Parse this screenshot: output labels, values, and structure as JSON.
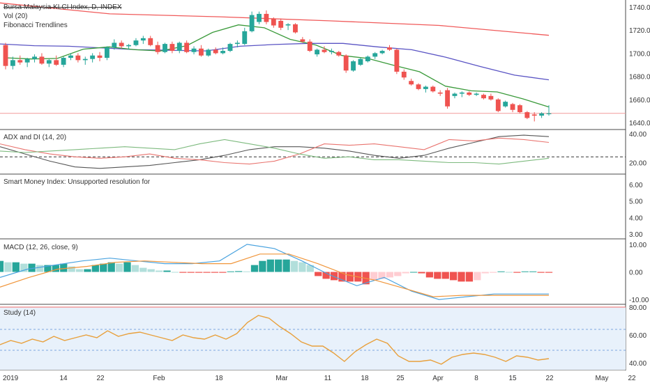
{
  "chart_data": {
    "type": "candlestick",
    "main": {
      "legend": [
        "Bursa Malaysia KLCI Index, D, INDEX",
        "Vol (20)",
        "Fibonacci Trendlines"
      ],
      "y_ticks": [
        "1740.00",
        "1720.00",
        "1700.00",
        "1680.00",
        "1660.00",
        "1640.00"
      ],
      "ylim": [
        1634,
        1746
      ],
      "candles": [
        [
          1707,
          1709,
          1686,
          1689
        ],
        [
          1689,
          1697,
          1686,
          1694
        ],
        [
          1694,
          1698,
          1690,
          1692
        ],
        [
          1692,
          1696,
          1688,
          1695
        ],
        [
          1695,
          1699,
          1692,
          1697
        ],
        [
          1697,
          1700,
          1690,
          1691
        ],
        [
          1691,
          1695,
          1688,
          1694
        ],
        [
          1694,
          1698,
          1689,
          1690
        ],
        [
          1690,
          1697,
          1688,
          1696
        ],
        [
          1696,
          1700,
          1694,
          1698
        ],
        [
          1698,
          1700,
          1692,
          1694
        ],
        [
          1694,
          1697,
          1690,
          1695
        ],
        [
          1695,
          1700,
          1692,
          1698
        ],
        [
          1698,
          1701,
          1693,
          1696
        ],
        [
          1696,
          1706,
          1694,
          1705
        ],
        [
          1705,
          1712,
          1703,
          1709
        ],
        [
          1709,
          1711,
          1704,
          1706
        ],
        [
          1706,
          1708,
          1703,
          1707
        ],
        [
          1707,
          1713,
          1706,
          1711
        ],
        [
          1711,
          1715,
          1708,
          1713
        ],
        [
          1713,
          1715,
          1706,
          1707
        ],
        [
          1707,
          1710,
          1699,
          1701
        ],
        [
          1701,
          1709,
          1700,
          1708
        ],
        [
          1708,
          1710,
          1700,
          1702
        ],
        [
          1702,
          1710,
          1700,
          1709
        ],
        [
          1709,
          1711,
          1700,
          1701
        ],
        [
          1701,
          1706,
          1699,
          1704
        ],
        [
          1704,
          1707,
          1697,
          1698
        ],
        [
          1698,
          1704,
          1697,
          1703
        ],
        [
          1703,
          1705,
          1699,
          1700
        ],
        [
          1700,
          1705,
          1699,
          1702
        ],
        [
          1702,
          1709,
          1701,
          1708
        ],
        [
          1708,
          1711,
          1705,
          1709
        ],
        [
          1708,
          1722,
          1707,
          1719
        ],
        [
          1719,
          1736,
          1718,
          1733
        ],
        [
          1727,
          1736,
          1725,
          1734
        ],
        [
          1734,
          1737,
          1725,
          1727
        ],
        [
          1730,
          1731,
          1722,
          1724
        ],
        [
          1728,
          1730,
          1720,
          1722
        ],
        [
          1724,
          1726,
          1720,
          1725
        ],
        [
          1725,
          1726,
          1717,
          1718
        ],
        [
          1712,
          1714,
          1709,
          1710
        ],
        [
          1710,
          1712,
          1701,
          1702
        ],
        [
          1699,
          1704,
          1697,
          1703
        ],
        [
          1703,
          1706,
          1700,
          1701
        ],
        [
          1701,
          1704,
          1699,
          1702
        ],
        [
          1701,
          1702,
          1697,
          1698
        ],
        [
          1698,
          1699,
          1683,
          1685
        ],
        [
          1685,
          1694,
          1684,
          1693
        ],
        [
          1690,
          1696,
          1689,
          1695
        ],
        [
          1693,
          1698,
          1692,
          1697
        ],
        [
          1697,
          1701,
          1695,
          1700
        ],
        [
          1700,
          1703,
          1699,
          1702
        ],
        [
          1705,
          1707,
          1702,
          1703
        ],
        [
          1703,
          1704,
          1682,
          1684
        ],
        [
          1684,
          1686,
          1677,
          1679
        ],
        [
          1676,
          1678,
          1672,
          1673
        ],
        [
          1673,
          1674,
          1668,
          1669
        ],
        [
          1669,
          1672,
          1666,
          1671
        ],
        [
          1671,
          1672,
          1666,
          1667
        ],
        [
          1666,
          1668,
          1663,
          1665
        ],
        [
          1668,
          1670,
          1652,
          1654
        ],
        [
          1663,
          1666,
          1661,
          1665
        ],
        [
          1665,
          1667,
          1662,
          1666
        ],
        [
          1666,
          1667,
          1663,
          1664
        ],
        [
          1664,
          1666,
          1663,
          1665
        ],
        [
          1664,
          1665,
          1660,
          1661
        ],
        [
          1663,
          1665,
          1659,
          1660
        ],
        [
          1660,
          1661,
          1649,
          1650
        ],
        [
          1654,
          1659,
          1653,
          1658
        ],
        [
          1656,
          1657,
          1649,
          1651
        ],
        [
          1655,
          1656,
          1648,
          1649
        ],
        [
          1649,
          1650,
          1643,
          1644
        ],
        [
          1647,
          1649,
          1641,
          1646
        ],
        [
          1646,
          1649,
          1644,
          1648
        ],
        [
          1648,
          1655,
          1646,
          1648
        ]
      ],
      "lines": [
        {
          "color": "#f05a5a",
          "values": [
            1743.5,
            1734,
            1731.5,
            1728,
            1724,
            1715.5
          ]
        },
        {
          "color": "#5a54c4",
          "values": [
            1708,
            1706.5,
            1706,
            1704.5,
            1703,
            1702.5,
            1702,
            1706,
            1707.5,
            1708.5,
            1708.5,
            1705.5,
            1703,
            1696.5,
            1688.5,
            1681,
            1677
          ]
        },
        {
          "color": "#3a9a3a",
          "values": [
            1696,
            1695,
            1695.5,
            1703.5,
            1705.5,
            1703,
            1702,
            1706.5,
            1718,
            1724.5,
            1722,
            1712,
            1707,
            1698,
            1695.5,
            1689.5,
            1684,
            1671.5,
            1667.5,
            1666.5,
            1660.5,
            1653.5
          ]
        }
      ],
      "horizontal_level": 1648
    },
    "adx": {
      "label": "ADX and DI (14, 20)",
      "y_ticks": [
        "40.00",
        "20.00"
      ],
      "ylim": [
        13,
        41
      ],
      "reference_level": 24,
      "series": [
        {
          "color": "#555555",
          "values": [
            31,
            26,
            21,
            17,
            16,
            17,
            18,
            20,
            22,
            25,
            29,
            31,
            31,
            30,
            28,
            25,
            23,
            25,
            30,
            34,
            38,
            39,
            38
          ]
        },
        {
          "color": "#e9736e",
          "values": [
            33,
            29,
            26,
            24,
            23,
            24,
            26,
            23,
            22,
            20,
            19,
            21,
            26,
            33,
            32,
            33,
            31,
            29,
            36,
            35,
            37,
            36,
            34
          ]
        },
        {
          "color": "#7dba7e",
          "values": [
            28,
            27,
            28,
            29,
            30,
            31,
            30,
            29,
            33,
            36,
            33,
            30,
            26,
            23,
            24,
            22,
            22,
            21,
            20,
            20,
            19,
            21,
            23
          ]
        }
      ]
    },
    "smi": {
      "label": "Smart Money Index: Unsupported resolution for",
      "y_ticks": [
        "6.00",
        "5.00",
        "4.00",
        "3.00"
      ]
    },
    "macd": {
      "label": "MACD (12, 26, close, 9)",
      "y_ticks": [
        "10.00",
        "0.00",
        "-10.00"
      ],
      "ylim": [
        -11.5,
        11.5
      ],
      "histogram": [
        4,
        3.5,
        3.5,
        3,
        3,
        2.5,
        2.5,
        2.5,
        3,
        2,
        1,
        1,
        2.5,
        3,
        3.5,
        3,
        3.5,
        2.5,
        1.5,
        1,
        0.5,
        0.5,
        0,
        -0.3,
        -0.3,
        -0.3,
        -0.3,
        -0.3,
        -0.3,
        0.2,
        0.3,
        0.2,
        2.5,
        4,
        4.5,
        4.5,
        4.5,
        4,
        3.5,
        2.5,
        -1.5,
        -2.5,
        -3,
        -3.5,
        -3.5,
        -3.5,
        -4.5,
        -3,
        -2.5,
        -2,
        -1.5,
        -0.5,
        0,
        -0.5,
        -2,
        -2.5,
        -2.5,
        -3,
        -3.5,
        -3.5,
        -3,
        -0.5,
        -0.3,
        0.2,
        0,
        -0.3,
        0.2,
        0.2,
        -0.3,
        -0.3
      ],
      "macd_line": [
        -2,
        1,
        2.5,
        4,
        5,
        4,
        3,
        3,
        4,
        10,
        8.5,
        4,
        -1,
        -5,
        -2,
        -7,
        -10,
        -9,
        -8,
        -8,
        -8
      ],
      "signal_line": [
        -5.5,
        -2,
        1,
        2,
        3.5,
        4,
        3.5,
        3,
        3,
        6.5,
        6.5,
        3,
        -1,
        -3,
        -6,
        -9,
        -8.5,
        -8.5,
        -8.5,
        -8.5
      ]
    },
    "study": {
      "label": "Study (14)",
      "y_ticks": [
        "80.00",
        "60.00",
        "40.00"
      ],
      "ylim": [
        35,
        80
      ],
      "bands": [
        64,
        49
      ],
      "values": [
        53,
        56,
        54,
        57,
        55,
        59,
        56,
        58,
        60,
        58,
        63,
        59,
        61,
        62,
        60,
        58,
        56,
        60,
        58,
        57,
        60,
        57,
        61,
        69,
        74,
        72,
        66,
        61,
        55,
        52,
        52,
        47,
        41,
        48,
        53,
        57,
        54,
        45,
        41,
        41,
        42,
        39,
        44,
        46,
        47,
        46,
        44,
        41,
        45,
        44,
        42,
        43
      ]
    },
    "x_axis": {
      "labels": [
        "2019",
        "14",
        "22",
        "Feb",
        "18",
        "Mar",
        "11",
        "18",
        "25",
        "Apr",
        "8",
        "15",
        "22",
        "May",
        "22"
      ]
    }
  }
}
